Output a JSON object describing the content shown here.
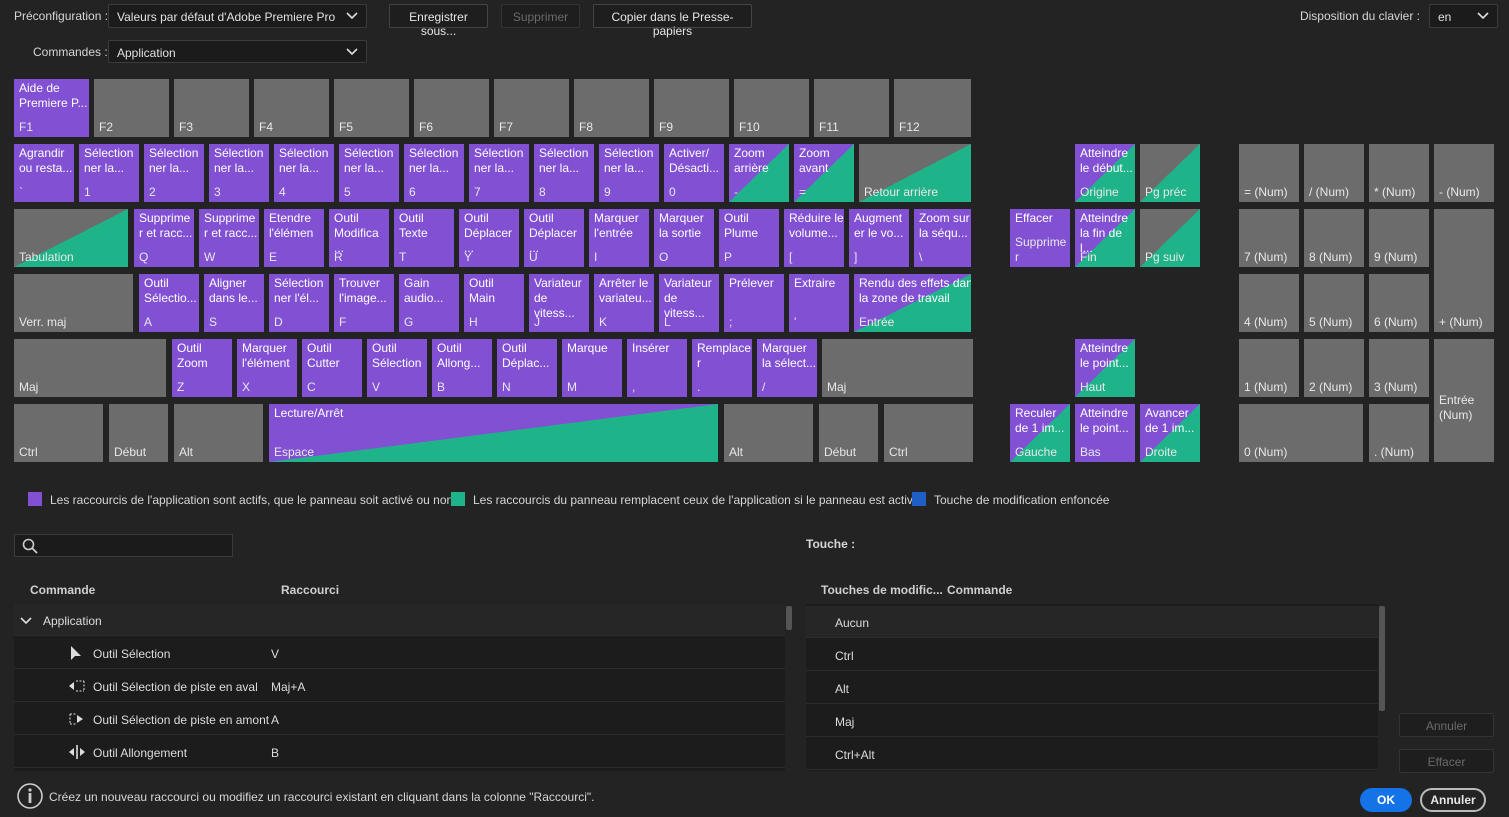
{
  "toolbar": {
    "preset_label": "Préconfiguration :",
    "preset_value": "Valeurs par défaut d'Adobe Premiere Pro",
    "buttons": [
      "Enregistrer sous...",
      "Supprimer",
      "Copier dans le Presse-papiers"
    ],
    "layout_label": "Disposition du clavier :",
    "layout_value": "en",
    "commands_label": "Commandes :",
    "commands_value": "Application"
  },
  "keyboard": {
    "keys": [
      {
        "command": "Aide de\nPremiere P...",
        "key": "F1",
        "state": "app"
      },
      {
        "key": "F2",
        "state": "none"
      },
      {
        "key": "F3",
        "state": "none"
      },
      {
        "key": "F4",
        "state": "none"
      },
      {
        "key": "F5",
        "state": "none"
      },
      {
        "key": "F6",
        "state": "none"
      },
      {
        "key": "F7",
        "state": "none"
      },
      {
        "key": "F8",
        "state": "none"
      },
      {
        "key": "F9",
        "state": "none"
      },
      {
        "key": "F10",
        "state": "none"
      },
      {
        "key": "F11",
        "state": "none"
      },
      {
        "key": "F12",
        "state": "none"
      },
      {
        "command": "Agrandir\nou resta...",
        "key": "`",
        "state": "app"
      },
      {
        "command": "Sélection\nner la...",
        "key": "1",
        "state": "app"
      },
      {
        "command": "Sélection\nner la...",
        "key": "2",
        "state": "app"
      },
      {
        "command": "Sélection\nner la...",
        "key": "3",
        "state": "app"
      },
      {
        "command": "Sélection\nner la...",
        "key": "4",
        "state": "app"
      },
      {
        "command": "Sélection\nner la...",
        "key": "5",
        "state": "app"
      },
      {
        "command": "Sélection\nner la...",
        "key": "6",
        "state": "app"
      },
      {
        "command": "Sélection\nner la...",
        "key": "7",
        "state": "app"
      },
      {
        "command": "Sélection\nner la...",
        "key": "8",
        "state": "app"
      },
      {
        "command": "Sélection\nner la...",
        "key": "9",
        "state": "app"
      },
      {
        "command": "Activer/\nDésacti...",
        "key": "0",
        "state": "app"
      },
      {
        "command": "Zoom\narrière",
        "key": "-",
        "state": "both"
      },
      {
        "command": "Zoom\navant",
        "key": "=",
        "state": "both"
      },
      {
        "key": "Retour arrière",
        "state": "panel"
      },
      {
        "command": "Atteindre\nle début...",
        "key": "Origine",
        "state": "both"
      },
      {
        "key": "Pg préc",
        "state": "panel"
      },
      {
        "key": "= (Num)",
        "state": "none"
      },
      {
        "key": "/ (Num)",
        "state": "none"
      },
      {
        "key": "* (Num)",
        "state": "none"
      },
      {
        "key": "- (Num)",
        "state": "none"
      },
      {
        "key": "Tabulation",
        "state": "panel"
      },
      {
        "command": "Supprime\nr et racc...",
        "key": "Q",
        "state": "app"
      },
      {
        "command": "Supprime\nr et racc...",
        "key": "W",
        "state": "app"
      },
      {
        "command": "Etendre\nl'élémen",
        "key": "E",
        "state": "app"
      },
      {
        "command": "Outil\nModifica\n...",
        "key": "R",
        "state": "app"
      },
      {
        "command": "Outil\nTexte",
        "key": "T",
        "state": "app"
      },
      {
        "command": "Outil\nDéplacer\n...",
        "key": "Y",
        "state": "app"
      },
      {
        "command": "Outil\nDéplacer\n...",
        "key": "U",
        "state": "app"
      },
      {
        "command": "Marquer\nl'entrée",
        "key": "I",
        "state": "app"
      },
      {
        "command": "Marquer\nla sortie",
        "key": "O",
        "state": "app"
      },
      {
        "command": "Outil\nPlume",
        "key": "P",
        "state": "app"
      },
      {
        "command": "Réduire le\nvolume...",
        "key": "[",
        "state": "app"
      },
      {
        "command": "Augment\ner le vo...",
        "key": "]",
        "state": "app"
      },
      {
        "command": "Zoom sur\nla séqu...",
        "key": "\\",
        "state": "app"
      },
      {
        "command": "Effacer",
        "key": "Supprime\nr",
        "state": "app"
      },
      {
        "command": "Atteindre\nla fin de\nl...",
        "key": "Fin",
        "state": "both"
      },
      {
        "key": "Pg suiv",
        "state": "panel"
      },
      {
        "key": "7 (Num)",
        "state": "none"
      },
      {
        "key": "8 (Num)",
        "state": "none"
      },
      {
        "key": "9 (Num)",
        "state": "none"
      },
      {
        "key": "+ (Num)",
        "state": "none"
      },
      {
        "key": "Verr. maj",
        "state": "none"
      },
      {
        "command": "Outil\nSélectio...",
        "key": "A",
        "state": "app"
      },
      {
        "command": "Aligner\ndans le...",
        "key": "S",
        "state": "app"
      },
      {
        "command": "Sélection\nner l'él...",
        "key": "D",
        "state": "app"
      },
      {
        "command": "Trouver\nl'image...",
        "key": "F",
        "state": "app"
      },
      {
        "command": "Gain\naudio...",
        "key": "G",
        "state": "app"
      },
      {
        "command": "Outil\nMain",
        "key": "H",
        "state": "app"
      },
      {
        "command": "Variateur\nde\nvitess...",
        "key": "J",
        "state": "app"
      },
      {
        "command": "Arrêter le\nvariateu...",
        "key": "K",
        "state": "app"
      },
      {
        "command": "Variateur\nde\nvitess...",
        "key": "L",
        "state": "app"
      },
      {
        "command": "Prélever",
        "key": ";",
        "state": "app"
      },
      {
        "command": "Extraire",
        "key": "'",
        "state": "app"
      },
      {
        "command": "Rendu des effets dans\nla zone de travail",
        "key": "Entrée",
        "state": "both"
      },
      {
        "key": "4 (Num)",
        "state": "none"
      },
      {
        "key": "5 (Num)",
        "state": "none"
      },
      {
        "key": "6 (Num)",
        "state": "none"
      },
      {
        "key": "Maj",
        "state": "none"
      },
      {
        "command": "Outil\nZoom",
        "key": "Z",
        "state": "app"
      },
      {
        "command": "Marquer\nl'élément",
        "key": "X",
        "state": "app"
      },
      {
        "command": "Outil\nCutter",
        "key": "C",
        "state": "app"
      },
      {
        "command": "Outil\nSélection",
        "key": "V",
        "state": "app"
      },
      {
        "command": "Outil\nAllong...",
        "key": "B",
        "state": "app"
      },
      {
        "command": "Outil\nDéplac...",
        "key": "N",
        "state": "app"
      },
      {
        "command": "Marque",
        "key": "M",
        "state": "app"
      },
      {
        "command": "Insérer",
        "key": ",",
        "state": "app"
      },
      {
        "command": "Remplace\nr",
        "key": ".",
        "state": "app"
      },
      {
        "command": "Marquer\nla sélect...",
        "key": "/",
        "state": "app"
      },
      {
        "key": "Maj",
        "state": "none"
      },
      {
        "command": "Atteindre\nle point...",
        "key": "Haut",
        "state": "both"
      },
      {
        "key": "1 (Num)",
        "state": "none"
      },
      {
        "key": "2 (Num)",
        "state": "none"
      },
      {
        "key": "3 (Num)",
        "state": "none"
      },
      {
        "key": "Entrée\n(Num)",
        "state": "none"
      },
      {
        "key": "Ctrl",
        "state": "none"
      },
      {
        "key": "Début",
        "state": "none"
      },
      {
        "key": "Alt",
        "state": "none"
      },
      {
        "command": "Lecture/Arrêt",
        "key": "Espace",
        "state": "both"
      },
      {
        "key": "Alt",
        "state": "none"
      },
      {
        "key": "Début",
        "state": "none"
      },
      {
        "key": "Ctrl",
        "state": "none"
      },
      {
        "command": "Reculer\nde 1 im...",
        "key": "Gauche",
        "state": "both"
      },
      {
        "command": "Atteindre\nle point...",
        "key": "Bas",
        "state": "app"
      },
      {
        "command": "Avancer\nde 1 im...",
        "key": "Droite",
        "state": "both"
      },
      {
        "key": "0 (Num)",
        "state": "none"
      },
      {
        "key": ". (Num)",
        "state": "none"
      }
    ]
  },
  "legend": [
    {
      "text": "Les raccourcis de l'application sont actifs, que le panneau soit activé ou non.",
      "color": "#8150d3"
    },
    {
      "text": "Les raccourcis du panneau remplacent ceux de l'application si le panneau est activé.",
      "color": "#1fb38a"
    },
    {
      "text": "Touche de modification enfoncée",
      "color": "#1d5fc4"
    }
  ],
  "key_label": "Touche :",
  "commands_table": {
    "columns": [
      "Commande",
      "Raccourci"
    ],
    "group": "Application",
    "rows": [
      [
        "Outil Sélection",
        "V"
      ],
      [
        "Outil Sélection de piste en aval",
        "Maj+A"
      ],
      [
        "Outil Sélection de piste en amont",
        "A"
      ],
      [
        "Outil Allongement",
        "B"
      ]
    ]
  },
  "modifiers_table": {
    "columns": [
      "Touches de modific...",
      "Commande"
    ],
    "rows": [
      "Aucun",
      "Ctrl",
      "Alt",
      "Maj",
      "Ctrl+Alt"
    ]
  },
  "side_buttons": [
    "Annuler",
    "Effacer"
  ],
  "footer": {
    "info": "Créez un nouveau raccourci ou modifiez un raccourci existant en cliquant dans la colonne \"Raccourci\".",
    "ok": "OK",
    "cancel": "Annuler"
  }
}
